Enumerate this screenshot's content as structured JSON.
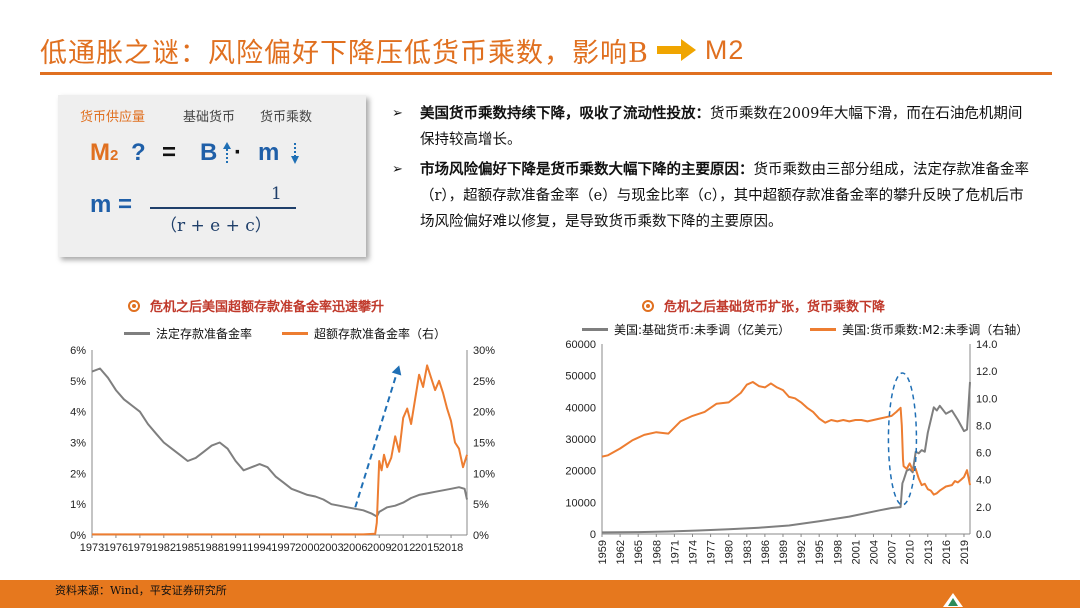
{
  "title": {
    "text": "低通胀之谜：风险偏好下降压低货币乘数，影响B",
    "suffix": "M2"
  },
  "formula": {
    "label_supply": "货币供应量",
    "label_base": "基础货币",
    "label_multiplier": "货币乘数",
    "line1": {
      "m2": "M",
      "m2_sub": "2",
      "q": "?",
      "eq": "=",
      "b": "B",
      "dot": "·",
      "m": "m"
    },
    "line2": {
      "m": "m =",
      "numerator": "1",
      "denominator": "（r + e + c）"
    }
  },
  "bullets": [
    {
      "bold": "美国货币乘数持续下降，吸收了流动性投放：",
      "text": "货币乘数在2009年大幅下滑，而在石油危机期间保持较高增长。"
    },
    {
      "bold": "市场风险偏好下降是货币乘数大幅下降的主要原因：",
      "text": "货币乘数由三部分组成，法定存款准备金率（r），超额存款准备金率（e）与现金比率（c），其中超额存款准备金率的攀升反映了危机后市场风险偏好难以修复，是导致货币乘数下降的主要原因。"
    }
  ],
  "footer": {
    "source": "资料来源：Wind，平安证券研究所"
  },
  "colors": {
    "accent": "#e07020",
    "grey_series": "#7f7f7f",
    "orange_series": "#ed7d31",
    "blue_dash": "#1f6fb5"
  },
  "chart_data": [
    {
      "type": "line",
      "title": "危机之后美国超额存款准备金率迅速攀升",
      "x_ticks": [
        "1973",
        "1976",
        "1979",
        "1982",
        "1985",
        "1988",
        "1991",
        "1994",
        "1997",
        "2000",
        "2003",
        "2006",
        "2009",
        "2012",
        "2015",
        "2018"
      ],
      "xlim": [
        1973,
        2020
      ],
      "y_left": {
        "ticks": [
          "0%",
          "1%",
          "2%",
          "3%",
          "4%",
          "5%",
          "6%"
        ],
        "lim": [
          0,
          6
        ]
      },
      "y_right": {
        "ticks": [
          "0%",
          "5%",
          "10%",
          "15%",
          "20%",
          "25%",
          "30%"
        ],
        "lim": [
          0,
          30
        ]
      },
      "series": [
        {
          "name": "法定存款准备金率",
          "axis": "left",
          "color": "#7f7f7f",
          "x": [
            1973,
            1974,
            1975,
            1976,
            1977,
            1978,
            1979,
            1980,
            1981,
            1982,
            1983,
            1984,
            1985,
            1986,
            1987,
            1988,
            1989,
            1990,
            1991,
            1992,
            1993,
            1994,
            1995,
            1996,
            1997,
            1998,
            1999,
            2000,
            2001,
            2002,
            2003,
            2004,
            2005,
            2006,
            2007,
            2008,
            2008.7,
            2009,
            2010,
            2011,
            2012,
            2013,
            2014,
            2015,
            2016,
            2017,
            2018,
            2019,
            2019.7,
            2020
          ],
          "y": [
            5.3,
            5.4,
            5.1,
            4.7,
            4.4,
            4.2,
            4.0,
            3.6,
            3.3,
            3.0,
            2.8,
            2.6,
            2.4,
            2.5,
            2.7,
            2.9,
            3.0,
            2.8,
            2.4,
            2.1,
            2.2,
            2.3,
            2.2,
            1.9,
            1.7,
            1.5,
            1.4,
            1.3,
            1.25,
            1.15,
            1.0,
            0.95,
            0.9,
            0.85,
            0.8,
            0.7,
            0.6,
            0.75,
            0.9,
            0.95,
            1.05,
            1.2,
            1.3,
            1.35,
            1.4,
            1.45,
            1.5,
            1.55,
            1.5,
            1.15
          ]
        },
        {
          "name": "超额存款准备金率（右）",
          "axis": "right",
          "color": "#ed7d31",
          "x": [
            1973,
            1990,
            2000,
            2007,
            2008.5,
            2008.7,
            2009,
            2009.3,
            2009.6,
            2010,
            2010.5,
            2011,
            2011.5,
            2012,
            2012.5,
            2013,
            2013.5,
            2014,
            2014.5,
            2015,
            2015.5,
            2016,
            2016.5,
            2017,
            2017.5,
            2018,
            2018.5,
            2019,
            2019.5,
            2020
          ],
          "y": [
            0.1,
            0.1,
            0.1,
            0.1,
            0.2,
            2.0,
            12.0,
            10.5,
            13.0,
            11.0,
            12.5,
            16.0,
            13.5,
            19.0,
            20.5,
            18.0,
            22.0,
            26.0,
            24.0,
            27.5,
            25.5,
            23.5,
            25.0,
            23.0,
            20.5,
            18.5,
            15.0,
            14.0,
            11.0,
            13.0
          ]
        }
      ],
      "annotation": {
        "type": "dashed-arrow",
        "from": [
          2006,
          0.9
        ],
        "to": [
          2011.5,
          5.5
        ],
        "axis": "left"
      }
    },
    {
      "type": "line",
      "title": "危机之后基础货币扩张，货币乘数下降",
      "x_ticks": [
        "1959",
        "1962",
        "1965",
        "1968",
        "1971",
        "1974",
        "1977",
        "1980",
        "1983",
        "1986",
        "1989",
        "1992",
        "1995",
        "1998",
        "2001",
        "2004",
        "2007",
        "2010",
        "2013",
        "2016",
        "2019"
      ],
      "xlim": [
        1959,
        2020
      ],
      "y_left": {
        "ticks": [
          "0",
          "10000",
          "20000",
          "30000",
          "40000",
          "50000",
          "60000"
        ],
        "lim": [
          0,
          60000
        ]
      },
      "y_right": {
        "ticks": [
          "0.0",
          "2.0",
          "4.0",
          "6.0",
          "8.0",
          "10.0",
          "12.0",
          "14.0"
        ],
        "lim": [
          0,
          14
        ]
      },
      "series": [
        {
          "name": "美国:基础货币:未季调（亿美元）",
          "axis": "left",
          "color": "#7f7f7f",
          "x": [
            1959,
            1965,
            1970,
            1975,
            1980,
            1985,
            1990,
            1995,
            2000,
            2005,
            2007,
            2008.5,
            2008.8,
            2009,
            2009.5,
            2010,
            2010.5,
            2011,
            2011.5,
            2012,
            2012.5,
            2013,
            2013.5,
            2014,
            2014.5,
            2015,
            2016,
            2017,
            2018,
            2019,
            2019.5,
            2020
          ],
          "y": [
            500,
            600,
            800,
            1100,
            1500,
            2000,
            2700,
            4000,
            5500,
            7500,
            8200,
            8500,
            16000,
            17000,
            20000,
            20500,
            19500,
            26000,
            25500,
            26500,
            26000,
            32000,
            36000,
            40000,
            39000,
            40500,
            38000,
            39000,
            36000,
            32500,
            33000,
            48000
          ]
        },
        {
          "name": "美国:货币乘数:M2:未季调（右轴）",
          "axis": "right",
          "color": "#ed7d31",
          "x": [
            1959,
            1960,
            1962,
            1964,
            1966,
            1968,
            1970,
            1972,
            1974,
            1976,
            1978,
            1980,
            1982,
            1983,
            1984,
            1985,
            1986,
            1987,
            1988,
            1989,
            1990,
            1991,
            1992,
            1993,
            1994,
            1995,
            1996,
            1997,
            1998,
            1999,
            2000,
            2001,
            2002,
            2003,
            2004,
            2005,
            2006,
            2007,
            2007.8,
            2008.5,
            2008.7,
            2008.9,
            2009,
            2009.5,
            2010,
            2010.5,
            2011,
            2011.5,
            2012,
            2012.5,
            2013,
            2013.5,
            2014,
            2014.5,
            2015,
            2016,
            2017,
            2017.5,
            2018,
            2018.5,
            2019,
            2019.5,
            2020
          ],
          "y": [
            5.7,
            5.8,
            6.3,
            6.9,
            7.3,
            7.5,
            7.4,
            8.3,
            8.7,
            9.0,
            9.6,
            9.7,
            10.4,
            11.0,
            11.2,
            10.9,
            10.8,
            11.1,
            10.8,
            10.6,
            10.1,
            10.0,
            9.7,
            9.3,
            9.0,
            8.5,
            8.2,
            8.4,
            8.3,
            8.4,
            8.3,
            8.4,
            8.4,
            8.3,
            8.4,
            8.5,
            8.6,
            8.7,
            9.0,
            9.3,
            8.0,
            5.5,
            5.0,
            4.8,
            5.2,
            4.7,
            4.8,
            4.1,
            3.6,
            3.7,
            3.3,
            3.2,
            2.9,
            3.0,
            3.2,
            3.5,
            3.6,
            3.9,
            3.8,
            4.0,
            4.2,
            4.7,
            3.6
          ]
        }
      ],
      "annotation": {
        "type": "dashed-ellipse",
        "center": [
          2008.8,
          7.0
        ],
        "axis": "right"
      }
    }
  ]
}
